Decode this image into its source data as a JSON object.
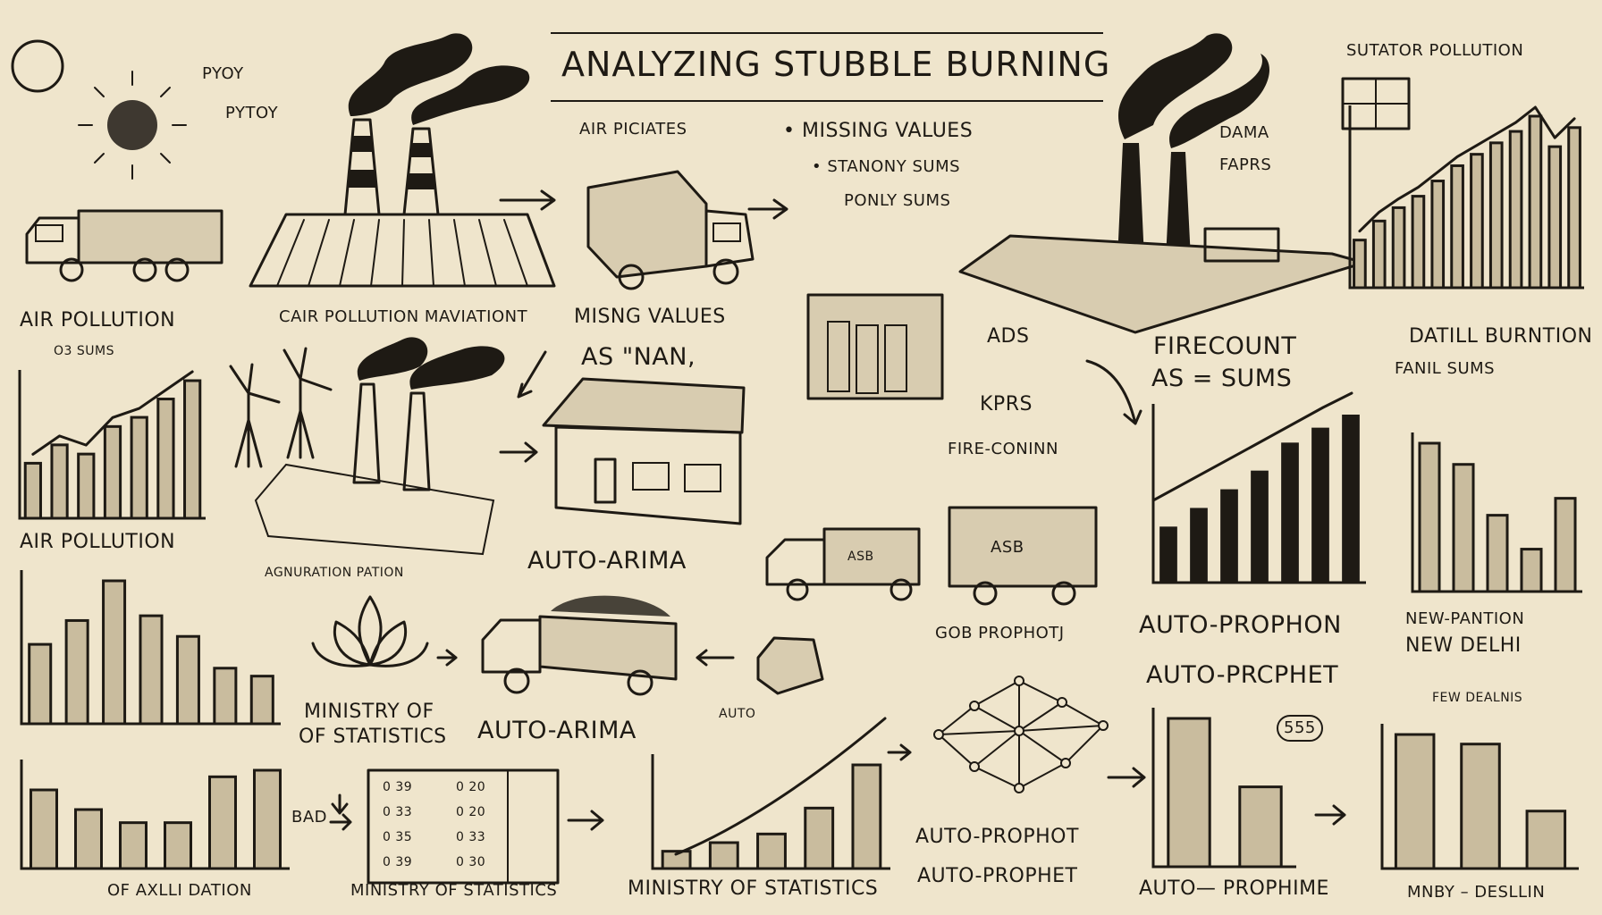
{
  "title": "ANALYZING STUBBLE BURNING",
  "labels": {
    "top_left_1": "PYOY",
    "top_left_2": "PYTOY",
    "air_pollution_1": "AIR POLLUTION",
    "air_pollution_2": "AIR POLLUTION",
    "cair_pollution": "CAIR POLLUTION MAVIATIONT",
    "air_picates": "AIR PICIATES",
    "missing_values": "• MISSING VALUES",
    "stanony_sums": "• STANONY SUMS",
    "ponly_sums": "PONLY SUMS",
    "dama": "DAMA",
    "faprs": "FAPRS",
    "stator_pollution": "SUTATOR POLLUTION",
    "mising_values": "MISNG VALUES",
    "as_nan": "AS \"NAN,",
    "firecount": "FIRECOUNT",
    "as_sums": "AS = SUMS",
    "ads": "ADS",
    "kprs": "KPRS",
    "detail_burnition": "DATILL BURNTION",
    "fanil_sums": "FANIL SUMS",
    "fire_conn": "FIRE-CONINN",
    "o3_sums": "O3 SUMS",
    "agnuration": "AGNURATION PATION",
    "auto_arima_1": "AUTO-ARIMA",
    "auto_arima_2": "AUTO-ARIMA",
    "auto_prophon": "AUTO-PROPHON",
    "auto_prcphet": "AUTO-PRCPHET",
    "new_pantion": "NEW-PANTION",
    "new_delhi": "NEW DELHI",
    "few_dealnis": "FEW DEALNIS",
    "ministry_of": "MINISTRY OF",
    "of_statistics": "OF STATISTICS",
    "gob_prophotj": "GOB PROPHOTJ",
    "auto_small": "AUTO",
    "bad": "BAD",
    "code_555": "555",
    "auto_prophot": "AUTO-PROPHOT",
    "auto_prophet": "AUTO-PROPHET",
    "bottom_1": "OF AXLLI DATION",
    "bottom_2": "MINISTRY OF STATISTICS",
    "bottom_3": "MINISTRY OF STATISTICS",
    "bottom_4": "AUTO— PROPHIME",
    "bottom_5": "MNBY – DESLLIN",
    "truck_sign": "ASB",
    "van_sign": "ASB"
  },
  "table_rows": [
    [
      "0 39",
      "0 20"
    ],
    [
      "0 33",
      "0 20"
    ],
    [
      "0 35",
      "0 33"
    ],
    [
      "0 39",
      "0 30"
    ]
  ],
  "chart_data": [
    {
      "type": "bar",
      "name_ref": "top-right",
      "values": [
        2.5,
        3.5,
        4.2,
        4.8,
        5.6,
        6.4,
        7.0,
        7.6,
        8.2,
        9.0,
        7.4,
        8.4
      ],
      "trend": true
    },
    {
      "type": "bar",
      "name_ref": "left-mid",
      "values": [
        3,
        4,
        3.5,
        5,
        5.5,
        6.5,
        7.5
      ],
      "trend": true
    },
    {
      "type": "bar",
      "name_ref": "left-lower",
      "values": [
        5,
        6.5,
        9,
        6.8,
        5.5,
        3.5,
        3
      ]
    },
    {
      "type": "bar",
      "name_ref": "left-bottom",
      "values": [
        6,
        4.5,
        3.5,
        3.5,
        7,
        7.5
      ]
    },
    {
      "type": "bar",
      "name_ref": "center-bottom",
      "values": [
        1,
        1.5,
        2,
        3.5,
        6
      ]
    },
    {
      "type": "bar",
      "name_ref": "firecount",
      "values": [
        3,
        4,
        5,
        6,
        7.5,
        8.3,
        9
      ]
    },
    {
      "type": "bar",
      "name_ref": "new-delhi",
      "values": [
        7,
        6,
        3.6,
        2,
        4.4
      ]
    },
    {
      "type": "bar",
      "name_ref": "auto-prophet",
      "values": [
        6.5,
        3.5
      ]
    },
    {
      "type": "bar",
      "name_ref": "bottom-right",
      "values": [
        7,
        6.5,
        3
      ]
    }
  ]
}
